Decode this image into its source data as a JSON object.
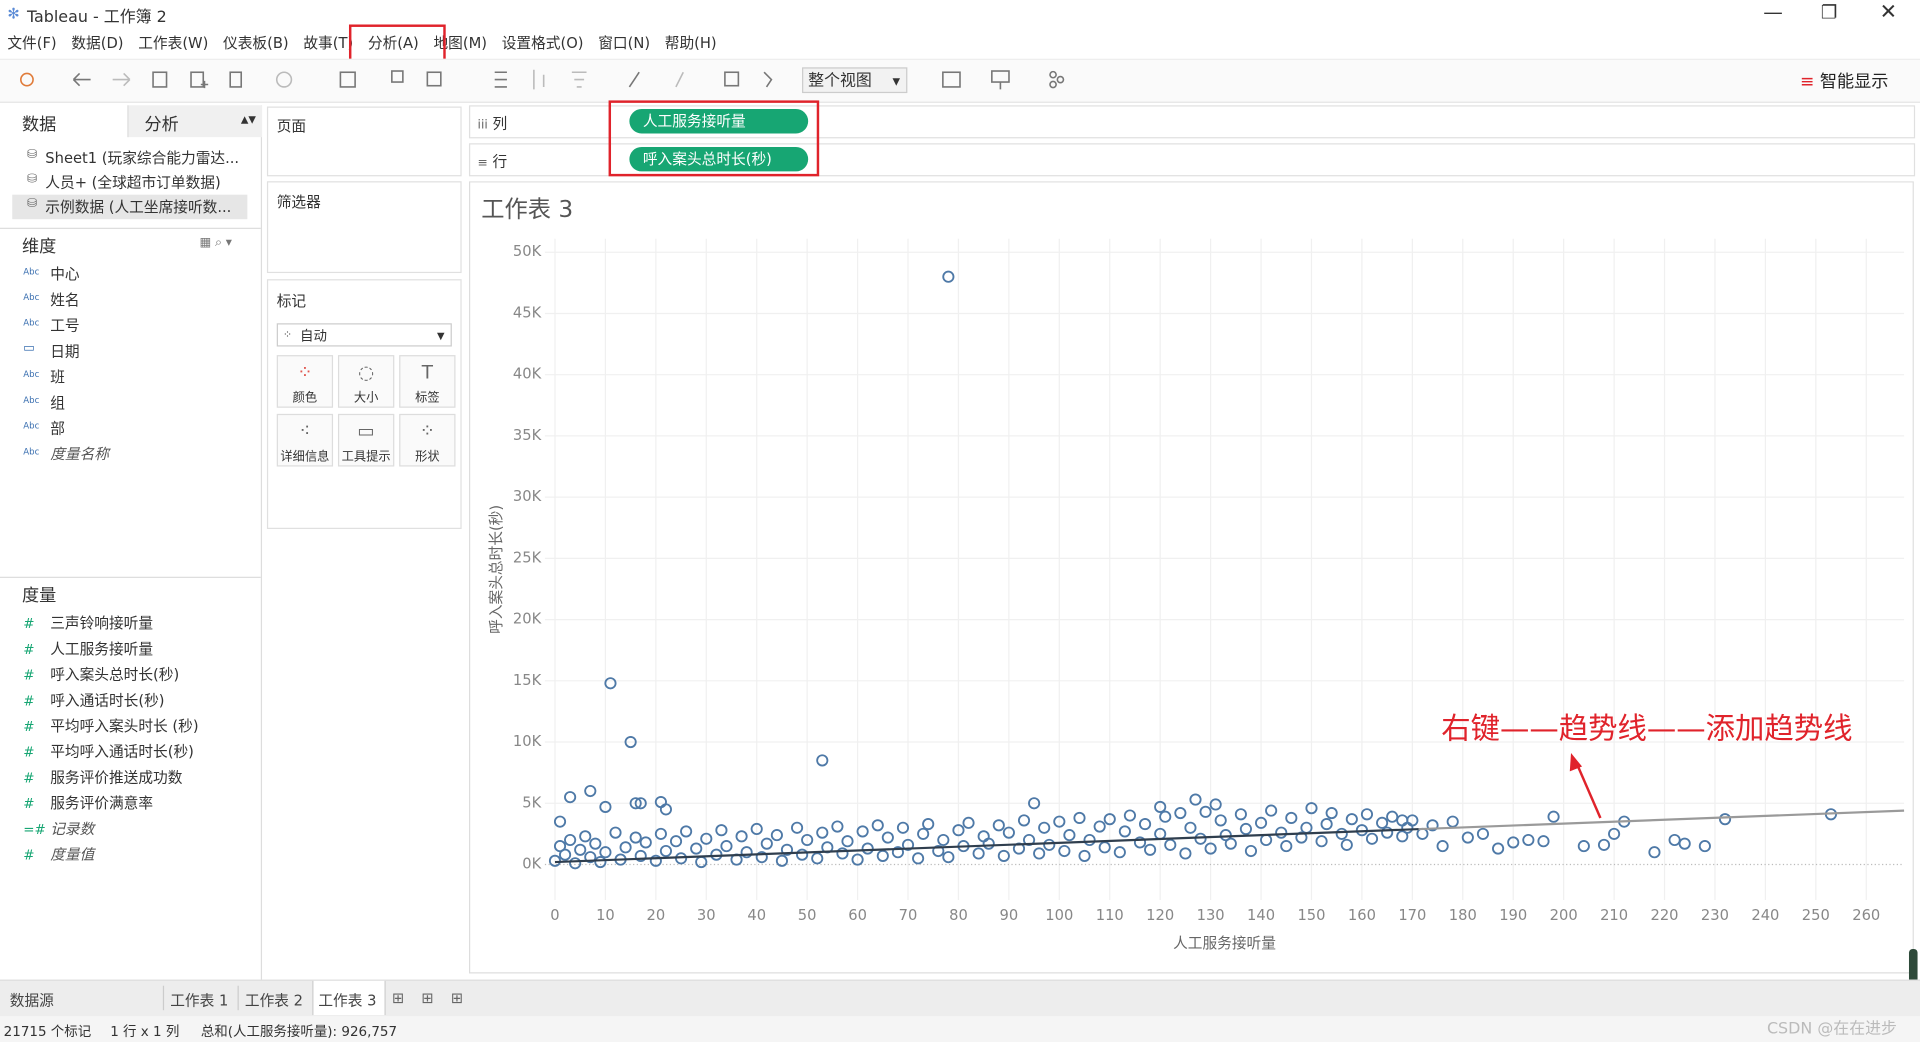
{
  "window": {
    "title": "Tableau - 工作簿 2"
  },
  "menu": [
    "文件(F)",
    "数据(D)",
    "工作表(W)",
    "仪表板(B)",
    "故事(T)",
    "分析(A)",
    "地图(M)",
    "设置格式(O)",
    "窗口(N)",
    "帮助(H)"
  ],
  "toolbar": {
    "view_select": "整个视图",
    "show_me": "智能显示"
  },
  "data_pane": {
    "tabs": [
      "数据",
      "分析"
    ],
    "sources": [
      "Sheet1 (玩家综合能力雷达...",
      "人员+ (全球超市订单数据)",
      "示例数据 (人工坐席接听数..."
    ],
    "dimensions_title": "维度",
    "dimensions": [
      {
        "icon": "Abc",
        "name": "中心"
      },
      {
        "icon": "Abc",
        "name": "姓名"
      },
      {
        "icon": "Abc",
        "name": "工号"
      },
      {
        "name": "日期"
      },
      {
        "icon": "Abc",
        "name": "班"
      },
      {
        "icon": "Abc",
        "name": "组"
      },
      {
        "icon": "Abc",
        "name": "部"
      },
      {
        "icon": "Abc",
        "name": "度量名称"
      }
    ],
    "measures_title": "度量",
    "measures": [
      {
        "icon": "#",
        "name": "三声铃响接听量"
      },
      {
        "icon": "#",
        "name": "人工服务接听量"
      },
      {
        "icon": "#",
        "name": "呼入案头总时长(秒)"
      },
      {
        "icon": "#",
        "name": "呼入通话时长(秒)"
      },
      {
        "icon": "#",
        "name": "平均呼入案头时长 (秒)"
      },
      {
        "icon": "#",
        "name": "平均呼入通话时长(秒)"
      },
      {
        "icon": "#",
        "name": "服务评价推送成功数"
      },
      {
        "icon": "#",
        "name": "服务评价满意率"
      },
      {
        "icon": "=#",
        "name": "记录数"
      },
      {
        "icon": "#",
        "name": "度量值"
      }
    ]
  },
  "cards": {
    "pages": "页面",
    "filters": "筛选器",
    "marks": "标记",
    "mark_type": "自动",
    "mark_buttons": [
      "颜色",
      "大小",
      "标签",
      "详细信息",
      "工具提示",
      "形状"
    ]
  },
  "shelves": {
    "columns_label": "列",
    "columns_pill": "人工服务接听量",
    "rows_label": "行",
    "rows_pill": "呼入案头总时长(秒)"
  },
  "chart_data": {
    "type": "scatter",
    "title": "工作表 3",
    "x_label": "人工服务接听量",
    "y_label": "呼入案头总时长(秒)",
    "xlim": [
      -2,
      267.5
    ],
    "xticks": [
      0,
      10,
      20,
      30,
      40,
      50,
      60,
      70,
      80,
      90,
      100,
      110,
      120,
      130,
      140,
      150,
      160,
      170,
      180,
      190,
      200,
      210,
      220,
      230,
      240,
      250,
      260
    ],
    "ylim": [
      -2900,
      51100
    ],
    "yticks": [
      {
        "value": 0,
        "label": "0K"
      },
      {
        "value": 5000,
        "label": "5K"
      },
      {
        "value": 10000,
        "label": "10K"
      },
      {
        "value": 15000,
        "label": "15K"
      },
      {
        "value": 20000,
        "label": "20K"
      },
      {
        "value": 25000,
        "label": "25K"
      },
      {
        "value": 30000,
        "label": "30K"
      },
      {
        "value": 35000,
        "label": "35K"
      },
      {
        "value": 40000,
        "label": "40K"
      },
      {
        "value": 45000,
        "label": "45K"
      },
      {
        "value": 50000,
        "label": "50K"
      }
    ],
    "grid": true,
    "color": "#4e79a7",
    "points": [
      [
        78,
        48000
      ],
      [
        11,
        14800
      ],
      [
        15,
        10000
      ],
      [
        53,
        8500
      ],
      [
        3,
        5500
      ],
      [
        7,
        6000
      ],
      [
        10,
        4700
      ],
      [
        16,
        5000
      ],
      [
        17,
        5000
      ],
      [
        21,
        5100
      ],
      [
        22,
        4500
      ],
      [
        1,
        3500
      ],
      [
        95,
        5000
      ],
      [
        120,
        4700
      ],
      [
        127,
        5300
      ],
      [
        131,
        4900
      ],
      [
        210,
        2500
      ],
      [
        212,
        3500
      ],
      [
        232,
        3700
      ],
      [
        253,
        4100
      ],
      [
        222,
        2000
      ],
      [
        228,
        1500
      ],
      [
        224,
        1700
      ],
      [
        218,
        1000
      ],
      [
        204,
        1500
      ],
      [
        208,
        1600
      ],
      [
        198,
        3900
      ],
      [
        190,
        1800
      ],
      [
        187,
        1300
      ],
      [
        196,
        1900
      ],
      [
        184,
        2500
      ],
      [
        176,
        1500
      ],
      [
        181,
        2200
      ],
      [
        193,
        2000
      ],
      [
        178,
        3500
      ],
      [
        168,
        3600
      ],
      [
        0,
        300
      ],
      [
        1,
        1500
      ],
      [
        2,
        800
      ],
      [
        3,
        2000
      ],
      [
        4,
        100
      ],
      [
        5,
        1200
      ],
      [
        6,
        2300
      ],
      [
        7,
        600
      ],
      [
        8,
        1700
      ],
      [
        9,
        200
      ],
      [
        10,
        1000
      ],
      [
        12,
        2600
      ],
      [
        13,
        400
      ],
      [
        14,
        1400
      ],
      [
        16,
        2200
      ],
      [
        17,
        700
      ],
      [
        18,
        1800
      ],
      [
        20,
        300
      ],
      [
        21,
        2500
      ],
      [
        22,
        1100
      ],
      [
        24,
        1900
      ],
      [
        25,
        500
      ],
      [
        26,
        2700
      ],
      [
        28,
        1300
      ],
      [
        29,
        200
      ],
      [
        30,
        2100
      ],
      [
        32,
        800
      ],
      [
        33,
        2800
      ],
      [
        34,
        1500
      ],
      [
        36,
        400
      ],
      [
        37,
        2300
      ],
      [
        38,
        1000
      ],
      [
        40,
        2900
      ],
      [
        41,
        600
      ],
      [
        42,
        1700
      ],
      [
        44,
        2400
      ],
      [
        45,
        300
      ],
      [
        46,
        1200
      ],
      [
        48,
        3000
      ],
      [
        49,
        800
      ],
      [
        50,
        2000
      ],
      [
        52,
        500
      ],
      [
        53,
        2600
      ],
      [
        54,
        1400
      ],
      [
        56,
        3100
      ],
      [
        57,
        900
      ],
      [
        58,
        1900
      ],
      [
        60,
        400
      ],
      [
        61,
        2700
      ],
      [
        62,
        1300
      ],
      [
        64,
        3200
      ],
      [
        65,
        700
      ],
      [
        66,
        2200
      ],
      [
        68,
        1000
      ],
      [
        69,
        3000
      ],
      [
        70,
        1600
      ],
      [
        72,
        500
      ],
      [
        73,
        2500
      ],
      [
        74,
        3300
      ],
      [
        76,
        1100
      ],
      [
        77,
        2000
      ],
      [
        78,
        600
      ],
      [
        80,
        2800
      ],
      [
        81,
        1500
      ],
      [
        82,
        3400
      ],
      [
        84,
        900
      ],
      [
        85,
        2300
      ],
      [
        86,
        1700
      ],
      [
        88,
        3200
      ],
      [
        89,
        700
      ],
      [
        90,
        2600
      ],
      [
        92,
        1300
      ],
      [
        93,
        3600
      ],
      [
        94,
        2000
      ],
      [
        96,
        900
      ],
      [
        97,
        3000
      ],
      [
        98,
        1600
      ],
      [
        100,
        3500
      ],
      [
        101,
        1100
      ],
      [
        102,
        2400
      ],
      [
        104,
        3800
      ],
      [
        105,
        700
      ],
      [
        106,
        2000
      ],
      [
        108,
        3100
      ],
      [
        109,
        1400
      ],
      [
        110,
        3700
      ],
      [
        112,
        1000
      ],
      [
        113,
        2700
      ],
      [
        114,
        4000
      ],
      [
        116,
        1800
      ],
      [
        117,
        3300
      ],
      [
        118,
        1200
      ],
      [
        120,
        2500
      ],
      [
        121,
        3900
      ],
      [
        122,
        1600
      ],
      [
        124,
        4200
      ],
      [
        125,
        900
      ],
      [
        126,
        3000
      ],
      [
        128,
        2100
      ],
      [
        129,
        4300
      ],
      [
        130,
        1300
      ],
      [
        132,
        3600
      ],
      [
        133,
        2400
      ],
      [
        134,
        1700
      ],
      [
        136,
        4100
      ],
      [
        137,
        2900
      ],
      [
        138,
        1100
      ],
      [
        140,
        3400
      ],
      [
        141,
        2000
      ],
      [
        142,
        4400
      ],
      [
        144,
        2600
      ],
      [
        145,
        1500
      ],
      [
        146,
        3800
      ],
      [
        148,
        2200
      ],
      [
        149,
        3000
      ],
      [
        150,
        4600
      ],
      [
        152,
        1900
      ],
      [
        153,
        3300
      ],
      [
        154,
        4200
      ],
      [
        156,
        2500
      ],
      [
        157,
        1600
      ],
      [
        158,
        3700
      ],
      [
        160,
        2800
      ],
      [
        161,
        4100
      ],
      [
        162,
        2100
      ],
      [
        164,
        3400
      ],
      [
        165,
        2600
      ],
      [
        166,
        3900
      ],
      [
        168,
        2300
      ],
      [
        169,
        3000
      ],
      [
        170,
        3600
      ],
      [
        172,
        2500
      ],
      [
        174,
        3200
      ]
    ],
    "trend_line": {
      "x": [
        0,
        267.5
      ],
      "y": [
        200,
        4400
      ]
    },
    "annotation": "右键——趋势线——添加趋势线"
  },
  "sheet_tabs": [
    "数据源",
    "工作表 1",
    "工作表 2",
    "工作表 3"
  ],
  "status_bar": [
    "21715 个标记",
    "1 行 x 1 列",
    "总和(人工服务接听量): 926,757"
  ],
  "watermark": "CSDN @在在进步"
}
